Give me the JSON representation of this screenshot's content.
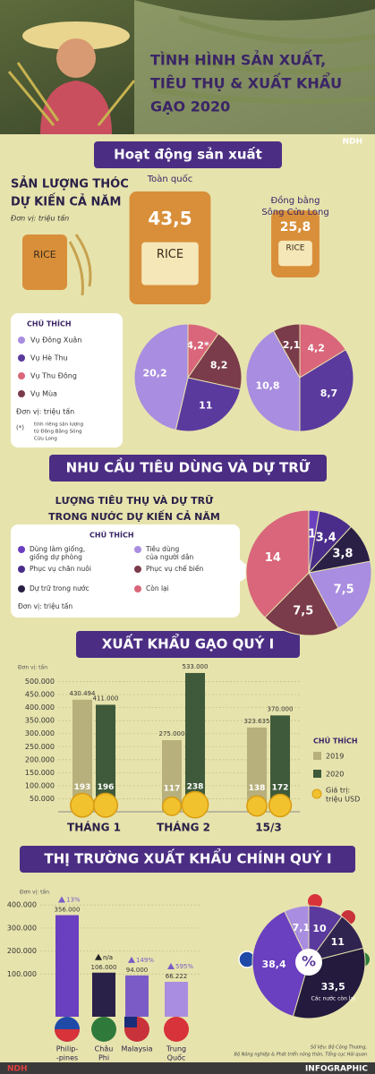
{
  "header": {
    "title_lines": [
      "TÌNH HÌNH SẢN XUẤT,",
      "TIÊU THỤ & XUẤT KHẨU",
      "GẠO 2020"
    ],
    "logo": "NDH"
  },
  "sections": [
    "Hoạt động sản xuất",
    "NHU CẦU TIÊU DÙNG VÀ DỰ TRỮ",
    "XUẤT KHẨU GẠO QUÝ I",
    "THỊ TRƯỜNG XUẤT KHẨU CHÍNH QUÝ I"
  ],
  "production": {
    "title_lines": [
      "SẢN LƯỢNG THÓC",
      "DỰ KIẾN CẢ NĂM"
    ],
    "unit": "Đơn vị: triệu tấn",
    "bag_text": "RICE",
    "bags": [
      {
        "label_lines": [
          "Toàn quốc"
        ],
        "value": 43.5,
        "value_label": "43,5"
      },
      {
        "label_lines": [
          "Đồng bằng",
          "Sông Cửu Long"
        ],
        "value": 25.8,
        "value_label": "25,8"
      }
    ],
    "legend": {
      "title": "CHÚ THÍCH",
      "items": [
        "Vụ Đông Xuân",
        "Vụ Hè Thu",
        "Vụ Thu Đông",
        "Vụ Mùa"
      ],
      "colors": [
        "#a98de0",
        "#5b3a9e",
        "#d9667a",
        "#7a3b4a"
      ],
      "unit": "Đơn vị: triệu tấn",
      "note_mark": "(*)",
      "note_lines": [
        "tính riêng sản lượng",
        "từ Đồng Bằng Sông",
        "Cửu Long"
      ]
    }
  },
  "consumption": {
    "title_lines": [
      "LƯỢNG TIÊU THỤ VÀ DỰ TRỮ",
      "TRONG NƯỚC DỰ KIẾN CẢ NĂM"
    ],
    "legend": {
      "title": "CHÚ THÍCH",
      "items": [
        [
          "Dùng làm giống,",
          "giống dự phòng"
        ],
        [
          "Tiêu dùng",
          "của người dân"
        ],
        [
          "Phục vụ chăn nuôi"
        ],
        [
          "Phục vụ chế biến"
        ],
        [
          "Dự trữ trong nước"
        ],
        [
          "Còn lại"
        ]
      ],
      "colors": [
        "#6a3fc0",
        "#a98de0",
        "#4a2d8a",
        "#7a3b4a",
        "#2a1f45",
        "#d9667a"
      ],
      "unit": "Đơn vị: triệu tấn"
    }
  },
  "chart_data": [
    {
      "type": "pie",
      "values": [
        4.2,
        8.2,
        11,
        20.2
      ],
      "value_labels": [
        "4,2*",
        "8,2",
        "11",
        "20,2"
      ],
      "colors": [
        "#d9667a",
        "#7a3b4a",
        "#5b3a9e",
        "#a98de0"
      ]
    },
    {
      "type": "pie",
      "values": [
        4.2,
        8.7,
        10.8,
        2.1
      ],
      "value_labels": [
        "4,2",
        "8,7",
        "10,8",
        "2,1"
      ],
      "colors": [
        "#d9667a",
        "#5b3a9e",
        "#a98de0",
        "#7a3b4a"
      ]
    },
    {
      "type": "pie",
      "values": [
        1,
        3.4,
        3.8,
        7.5,
        7.5,
        14
      ],
      "value_labels": [
        "1",
        "3,4",
        "3,8",
        "7,5",
        "7,5",
        "14"
      ],
      "colors": [
        "#6a3fc0",
        "#4a2d8a",
        "#2a1f45",
        "#a98de0",
        "#7a3b4a",
        "#d9667a"
      ]
    },
    {
      "type": "bar",
      "unit": "Đơn vị: tấn",
      "categories": [
        "THÁNG 1",
        "THÁNG 2",
        "15/3"
      ],
      "series": [
        {
          "name": "2019",
          "color": "#b8b07c",
          "values": [
            430494,
            275000,
            323635
          ],
          "value_labels": [
            "430.494",
            "275.000",
            "323.635"
          ],
          "usd": [
            193,
            117,
            138
          ]
        },
        {
          "name": "2020",
          "color": "#3f5a3a",
          "values": [
            411000,
            533000,
            370000
          ],
          "value_labels": [
            "411.000",
            "533.000",
            "370.000"
          ],
          "usd": [
            196,
            238,
            172
          ]
        }
      ],
      "ylim": [
        0,
        550000
      ],
      "yticks": [
        {
          "value": 50000,
          "label": "50.000"
        },
        {
          "value": 100000,
          "label": "100.000"
        },
        {
          "value": 150000,
          "label": "150.000"
        },
        {
          "value": 200000,
          "label": "200.000"
        },
        {
          "value": 250000,
          "label": "250.000"
        },
        {
          "value": 300000,
          "label": "300.000"
        },
        {
          "value": 350000,
          "label": "350.000"
        },
        {
          "value": 400000,
          "label": "400.000"
        },
        {
          "value": 450000,
          "label": "450.000"
        },
        {
          "value": 500000,
          "label": "500.000"
        }
      ],
      "legend": {
        "title": "CHÚ THÍCH",
        "usd_label_lines": [
          "Giá trị:",
          "triệu USD"
        ]
      },
      "grid": true
    },
    {
      "type": "bar",
      "unit": "Đơn vị: tấn",
      "categories": [
        [
          "Philip-",
          "-pines"
        ],
        [
          "Châu",
          "Phi"
        ],
        [
          "Malaysia"
        ],
        [
          "Trung",
          "Quốc"
        ]
      ],
      "values": [
        356000,
        106000,
        94000,
        66222
      ],
      "value_labels": [
        "356.000",
        "106.000",
        "94.000",
        "66.222"
      ],
      "change_labels": [
        "13%",
        "n/a",
        "149%",
        "595%"
      ],
      "colors": [
        "#6a3fc0",
        "#2a2148",
        "#7b5cc6",
        "#a98de0"
      ],
      "ylim": [
        0,
        450000
      ],
      "yticks": [
        {
          "value": 100000,
          "label": "100.000"
        },
        {
          "value": 200000,
          "label": "200.000"
        },
        {
          "value": 300000,
          "label": "300.000"
        },
        {
          "value": 400000,
          "label": "400.000"
        }
      ],
      "grid": true
    },
    {
      "type": "pie",
      "values": [
        10,
        11,
        33.5,
        38.4,
        7.1
      ],
      "value_labels": [
        "10",
        "11",
        "33,5",
        "38,4",
        "7,1"
      ],
      "colors": [
        "#5b3a9e",
        "#2f2450",
        "#231a3d",
        "#6a3fc0",
        "#a98de0"
      ],
      "center_label": "%",
      "annotation": "Các nước còn lại"
    }
  ],
  "footer": {
    "source_lines": [
      "Số liệu: Bộ Công Thương,",
      "Bộ Nông nghiệp & Phát triển nông thôn, Tổng cục Hải quan"
    ],
    "logo": "NDH",
    "label": "INFOGRAPHIC"
  }
}
